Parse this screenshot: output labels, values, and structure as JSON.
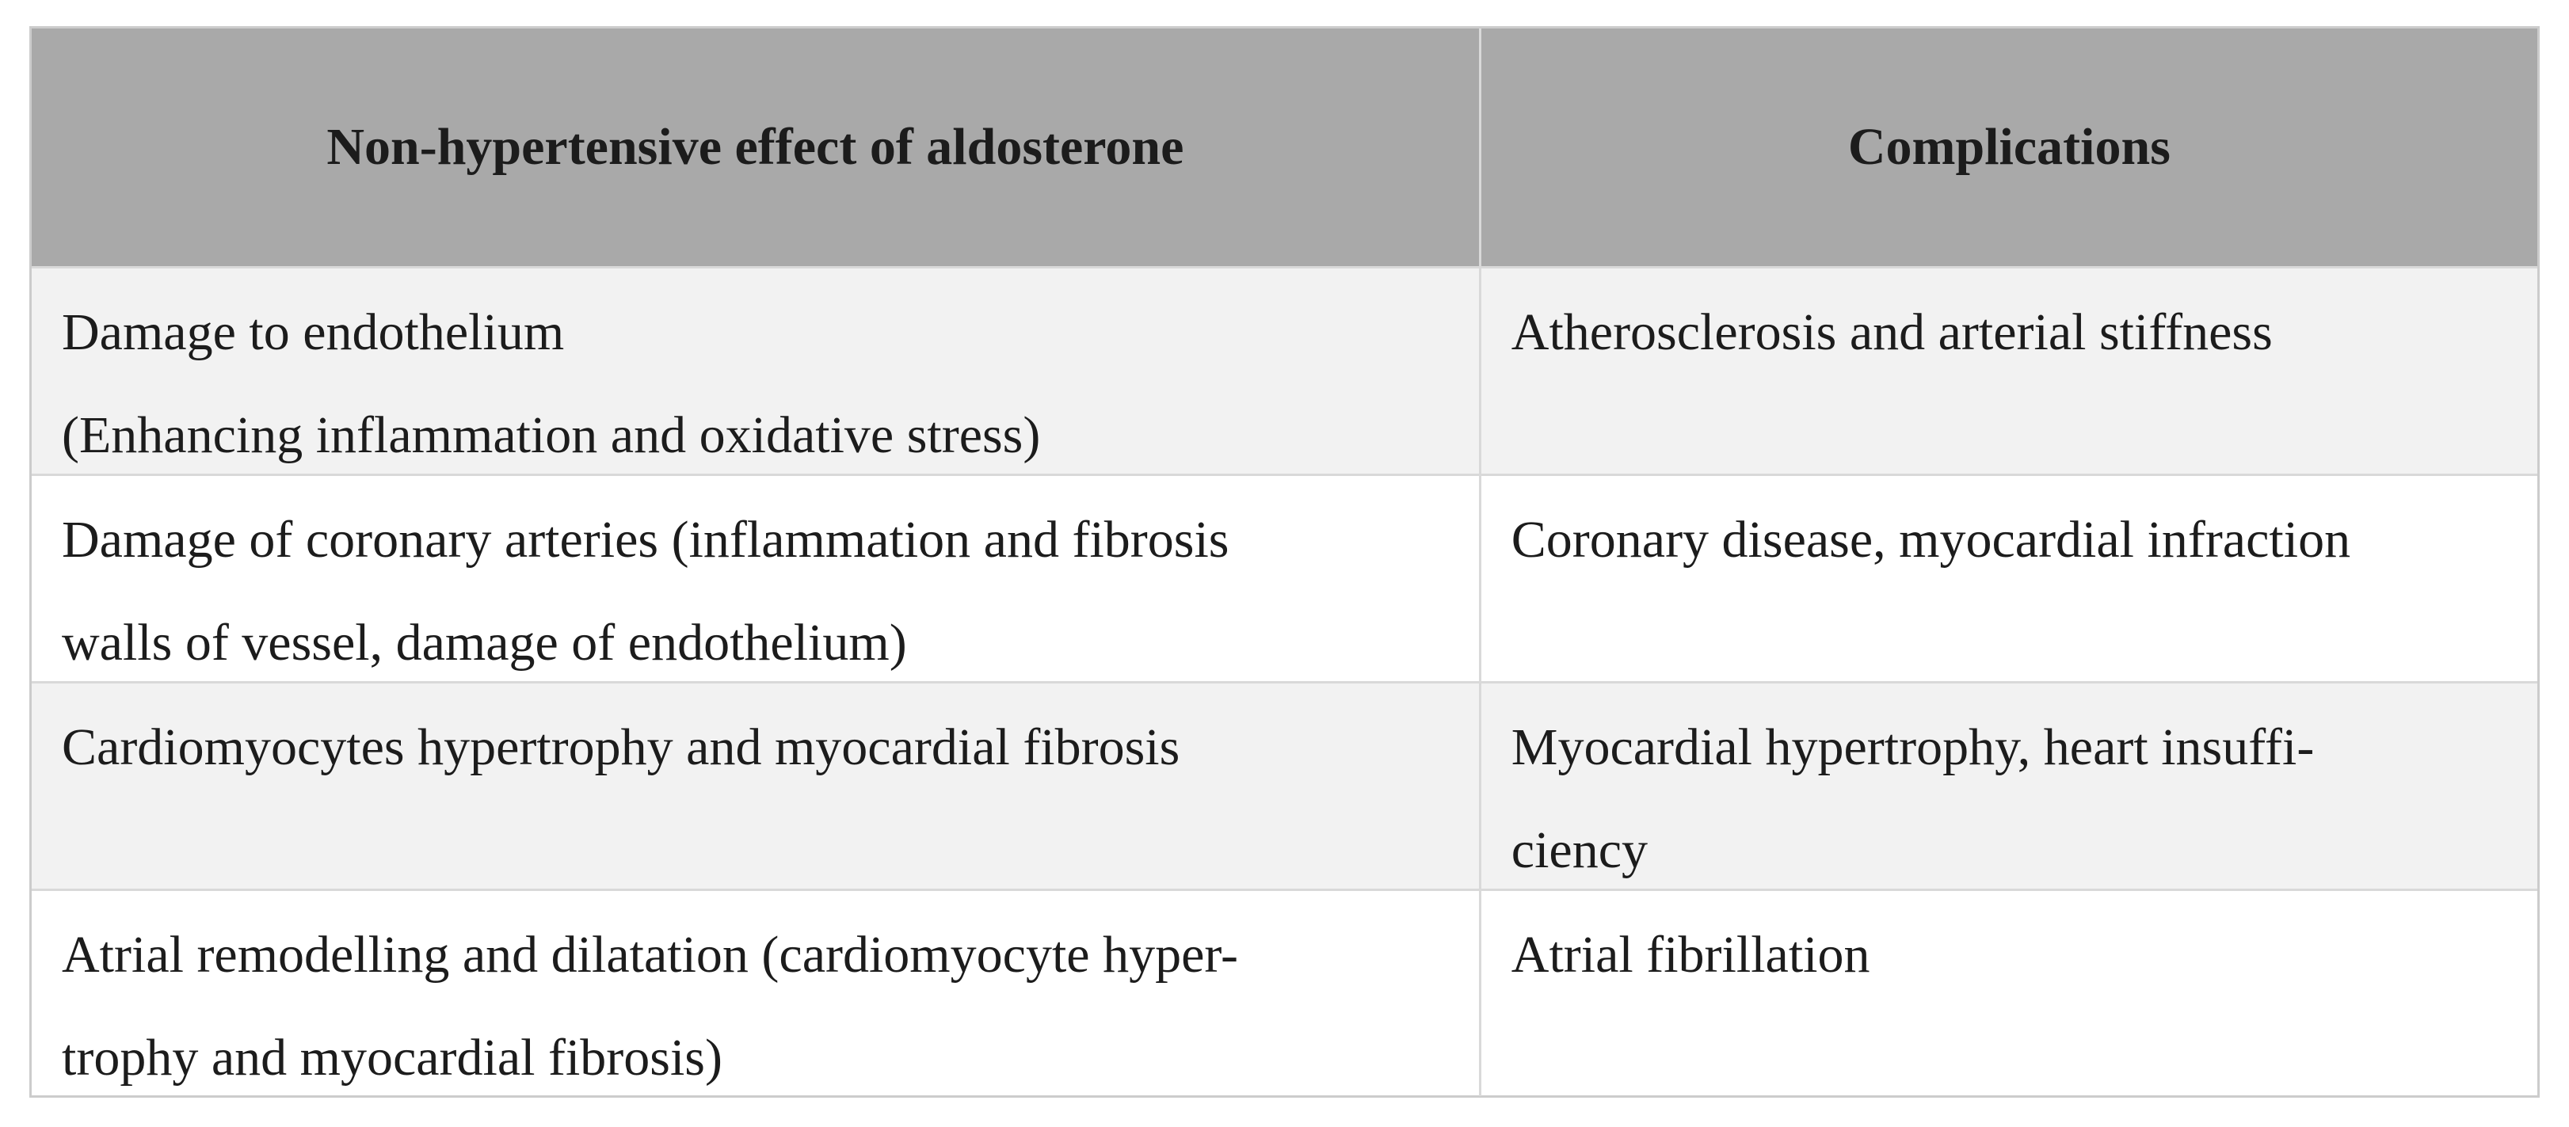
{
  "table": {
    "style": {
      "header_bg": "#a9a9a9",
      "row_bg": "#ffffff",
      "row_alt_bg": "#f2f2f2",
      "divider_color": "#d9d9d9",
      "border_color": "#cccccc",
      "text_color": "#1c1c1c"
    },
    "columns": [
      {
        "label": "Non-hypertensive effect of aldosterone"
      },
      {
        "label": "Complications"
      }
    ],
    "rows": [
      {
        "effect": [
          "Damage to endothelium",
          "(Enhancing inflammation and oxidative stress)"
        ],
        "complications": [
          "Atherosclerosis and arterial stiffness"
        ]
      },
      {
        "effect": [
          "Damage of coronary arteries (inflammation and fibrosis",
          "walls of vessel, damage of endothelium)"
        ],
        "complications": [
          "Coronary disease, myocardial infraction"
        ]
      },
      {
        "effect": [
          "Cardiomyocytes hypertrophy and myocardial fibrosis"
        ],
        "complications": [
          "Myocardial hypertrophy, heart insuffi-",
          "ciency"
        ]
      },
      {
        "effect": [
          "Atrial remodelling and dilatation (cardiomyocyte hyper-",
          "trophy and myocardial fibrosis)"
        ],
        "complications": [
          "Atrial fibrillation"
        ]
      }
    ]
  }
}
